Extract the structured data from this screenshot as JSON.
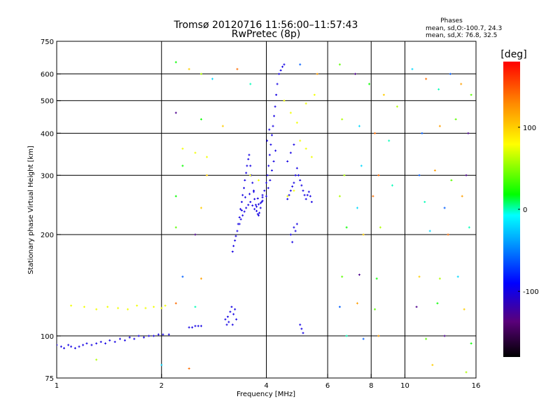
{
  "colors": {
    "background": "#ffffff",
    "axes": "#000000",
    "o_mode_points": "#1f1fff",
    "colorbar_stops": [
      "#000000",
      "#5a007a",
      "#0000ff",
      "#00aaff",
      "#00ffff",
      "#00ff00",
      "#ffff00",
      "#ff8800",
      "#ff0000"
    ]
  },
  "chart_data": {
    "type": "scatter",
    "title": "Tromsø 20120716 11:56:00–11:57:43",
    "subtitle": "RwPretec (8p)",
    "xlabel": "Frequency [MHz]",
    "ylabel": "Stationary phase Virtual Height [km]",
    "x_scale": "log",
    "y_scale": "log",
    "xlim": [
      1,
      16
    ],
    "ylim": [
      75,
      750
    ],
    "x_ticks": [
      1,
      2,
      4,
      6,
      8,
      10,
      16
    ],
    "y_ticks": [
      75,
      100,
      200,
      300,
      400,
      500,
      600,
      750
    ],
    "x_gridlines": [
      2,
      4,
      6,
      8,
      10
    ],
    "y_gridlines": [
      100,
      200,
      300,
      400,
      500,
      600
    ],
    "grid": true,
    "legend": {
      "title": "Phases",
      "lines": [
        "mean, sd,O:-100.7, 24.3",
        "mean, sd,X:  76.8, 32.5"
      ],
      "placement": "top-right"
    },
    "colorbar": {
      "label": "[deg]",
      "range": [
        -180,
        180
      ],
      "tick_labels": [
        "100",
        "0",
        "-100"
      ],
      "tick_values": [
        100,
        0,
        -100
      ],
      "placement": "right"
    },
    "traces": [
      {
        "mode": "O",
        "phase": -100,
        "points": [
          [
            1.0,
            94
          ],
          [
            1.03,
            93
          ],
          [
            1.05,
            92
          ],
          [
            1.08,
            94
          ],
          [
            1.1,
            93
          ],
          [
            1.13,
            92
          ],
          [
            1.16,
            93
          ],
          [
            1.19,
            94
          ],
          [
            1.22,
            95
          ],
          [
            1.26,
            94
          ],
          [
            1.3,
            95
          ],
          [
            1.34,
            96
          ],
          [
            1.38,
            95
          ],
          [
            1.42,
            97
          ],
          [
            1.47,
            96
          ],
          [
            1.52,
            98
          ],
          [
            1.57,
            97
          ],
          [
            1.62,
            99
          ],
          [
            1.67,
            98
          ],
          [
            1.72,
            100
          ],
          [
            1.78,
            99
          ],
          [
            1.84,
            100
          ],
          [
            1.9,
            100
          ],
          [
            1.96,
            101
          ],
          [
            2.02,
            101
          ],
          [
            2.1,
            101
          ],
          [
            2.4,
            106
          ],
          [
            2.45,
            106
          ],
          [
            2.5,
            107
          ],
          [
            2.55,
            107
          ],
          [
            2.6,
            107
          ],
          [
            3.05,
            112
          ],
          [
            3.08,
            108
          ],
          [
            3.1,
            114
          ],
          [
            3.12,
            110
          ],
          [
            3.15,
            118
          ],
          [
            3.18,
            122
          ],
          [
            3.2,
            108
          ],
          [
            3.22,
            116
          ],
          [
            3.25,
            120
          ],
          [
            3.28,
            112
          ],
          [
            3.2,
            178
          ],
          [
            3.22,
            185
          ],
          [
            3.25,
            192
          ],
          [
            3.27,
            198
          ],
          [
            3.3,
            205
          ],
          [
            3.32,
            215
          ],
          [
            3.35,
            225
          ],
          [
            3.37,
            238
          ],
          [
            3.4,
            250
          ],
          [
            3.42,
            262
          ],
          [
            3.45,
            275
          ],
          [
            3.47,
            290
          ],
          [
            3.5,
            305
          ],
          [
            3.52,
            320
          ],
          [
            3.55,
            335
          ],
          [
            3.57,
            345
          ],
          [
            3.6,
            320
          ],
          [
            3.62,
            300
          ],
          [
            3.65,
            285
          ],
          [
            3.68,
            270
          ],
          [
            3.7,
            255
          ],
          [
            3.73,
            245
          ],
          [
            3.75,
            235
          ],
          [
            3.78,
            230
          ],
          [
            3.8,
            228
          ],
          [
            3.82,
            232
          ],
          [
            3.85,
            240
          ],
          [
            3.88,
            250
          ],
          [
            3.9,
            258
          ],
          [
            3.35,
            215
          ],
          [
            3.38,
            222
          ],
          [
            3.42,
            228
          ],
          [
            3.46,
            234
          ],
          [
            3.5,
            240
          ],
          [
            3.55,
            245
          ],
          [
            3.6,
            250
          ],
          [
            3.65,
            244
          ],
          [
            3.7,
            238
          ],
          [
            3.75,
            242
          ],
          [
            3.8,
            246
          ],
          [
            3.85,
            248
          ],
          [
            3.9,
            252
          ],
          [
            3.4,
            236
          ],
          [
            3.48,
            258
          ],
          [
            3.58,
            264
          ],
          [
            3.68,
            268
          ],
          [
            3.78,
            256
          ],
          [
            3.9,
            262
          ],
          [
            3.95,
            270
          ],
          [
            4.0,
            285
          ],
          [
            4.03,
            300
          ],
          [
            4.06,
            320
          ],
          [
            4.09,
            345
          ],
          [
            4.12,
            370
          ],
          [
            4.15,
            395
          ],
          [
            4.18,
            420
          ],
          [
            4.21,
            450
          ],
          [
            4.24,
            480
          ],
          [
            4.27,
            520
          ],
          [
            4.3,
            560
          ],
          [
            4.35,
            600
          ],
          [
            4.4,
            615
          ],
          [
            4.45,
            630
          ],
          [
            4.5,
            640
          ],
          [
            4.0,
            260
          ],
          [
            4.05,
            275
          ],
          [
            4.1,
            290
          ],
          [
            4.15,
            310
          ],
          [
            4.2,
            330
          ],
          [
            4.25,
            355
          ],
          [
            4.02,
            380
          ],
          [
            4.08,
            410
          ],
          [
            4.6,
            255
          ],
          [
            4.65,
            262
          ],
          [
            4.7,
            270
          ],
          [
            4.75,
            278
          ],
          [
            4.8,
            285
          ],
          [
            4.85,
            300
          ],
          [
            4.9,
            315
          ],
          [
            4.95,
            300
          ],
          [
            5.0,
            290
          ],
          [
            5.05,
            280
          ],
          [
            5.1,
            270
          ],
          [
            5.15,
            262
          ],
          [
            5.2,
            255
          ],
          [
            5.25,
            262
          ],
          [
            5.3,
            268
          ],
          [
            5.35,
            260
          ],
          [
            5.4,
            250
          ],
          [
            4.7,
            200
          ],
          [
            4.75,
            190
          ],
          [
            4.8,
            210
          ],
          [
            4.85,
            205
          ],
          [
            4.9,
            215
          ],
          [
            4.6,
            330
          ],
          [
            4.7,
            350
          ],
          [
            4.8,
            370
          ],
          [
            5.0,
            108
          ],
          [
            5.05,
            105
          ],
          [
            5.1,
            102
          ]
        ]
      },
      {
        "mode": "X",
        "phase": 76,
        "points": [
          [
            1.1,
            123
          ],
          [
            1.2,
            122
          ],
          [
            1.3,
            120
          ],
          [
            1.4,
            122
          ],
          [
            1.5,
            121
          ],
          [
            1.6,
            120
          ],
          [
            1.7,
            123
          ],
          [
            1.8,
            121
          ],
          [
            1.9,
            122
          ],
          [
            2.0,
            121
          ],
          [
            2.05,
            123
          ],
          [
            2.3,
            360
          ],
          [
            2.5,
            350
          ],
          [
            2.7,
            340
          ],
          [
            3.6,
            300
          ],
          [
            3.8,
            290
          ],
          [
            4.6,
            260
          ],
          [
            4.8,
            270
          ],
          [
            5.0,
            380
          ],
          [
            5.2,
            360
          ],
          [
            5.4,
            340
          ],
          [
            4.5,
            500
          ],
          [
            4.7,
            460
          ],
          [
            4.9,
            430
          ],
          [
            5.5,
            520
          ],
          [
            5.2,
            490
          ]
        ]
      },
      {
        "mode": "scattered",
        "phase": 20,
        "points": [
          [
            2.2,
            650
          ],
          [
            2.4,
            620
          ],
          [
            2.6,
            600
          ],
          [
            2.8,
            580
          ],
          [
            3.3,
            620
          ],
          [
            3.6,
            560
          ],
          [
            5.0,
            640
          ],
          [
            5.6,
            600
          ],
          [
            6.5,
            640
          ],
          [
            7.2,
            600
          ],
          [
            7.9,
            560
          ],
          [
            8.7,
            520
          ],
          [
            9.5,
            480
          ],
          [
            10.5,
            620
          ],
          [
            11.5,
            580
          ],
          [
            12.5,
            540
          ],
          [
            13.5,
            600
          ],
          [
            14.5,
            560
          ],
          [
            15.5,
            520
          ],
          [
            2.2,
            460
          ],
          [
            2.6,
            440
          ],
          [
            3.0,
            420
          ],
          [
            6.6,
            440
          ],
          [
            7.4,
            420
          ],
          [
            8.2,
            400
          ],
          [
            9.0,
            380
          ],
          [
            11.2,
            400
          ],
          [
            12.6,
            420
          ],
          [
            14.0,
            440
          ],
          [
            15.2,
            400
          ],
          [
            2.3,
            320
          ],
          [
            2.7,
            300
          ],
          [
            6.7,
            300
          ],
          [
            7.5,
            320
          ],
          [
            8.4,
            300
          ],
          [
            9.2,
            280
          ],
          [
            11.0,
            300
          ],
          [
            12.2,
            310
          ],
          [
            13.6,
            290
          ],
          [
            15.0,
            300
          ],
          [
            2.2,
            260
          ],
          [
            2.6,
            240
          ],
          [
            6.5,
            260
          ],
          [
            7.3,
            240
          ],
          [
            8.1,
            260
          ],
          [
            11.4,
            250
          ],
          [
            13.0,
            240
          ],
          [
            14.6,
            260
          ],
          [
            2.2,
            210
          ],
          [
            2.5,
            200
          ],
          [
            6.8,
            210
          ],
          [
            7.6,
            200
          ],
          [
            8.5,
            210
          ],
          [
            11.8,
            205
          ],
          [
            13.3,
            200
          ],
          [
            15.3,
            210
          ],
          [
            2.3,
            150
          ],
          [
            2.6,
            148
          ],
          [
            6.6,
            150
          ],
          [
            7.4,
            152
          ],
          [
            8.3,
            148
          ],
          [
            11.0,
            150
          ],
          [
            12.6,
            148
          ],
          [
            14.2,
            150
          ],
          [
            2.2,
            125
          ],
          [
            2.5,
            122
          ],
          [
            6.5,
            122
          ],
          [
            7.3,
            125
          ],
          [
            8.2,
            120
          ],
          [
            10.8,
            122
          ],
          [
            12.4,
            125
          ],
          [
            14.8,
            120
          ],
          [
            1.3,
            85
          ],
          [
            2.0,
            82
          ],
          [
            2.4,
            80
          ],
          [
            6.8,
            100
          ],
          [
            7.6,
            98
          ],
          [
            8.4,
            100
          ],
          [
            11.5,
            98
          ],
          [
            13.0,
            100
          ],
          [
            15.5,
            95
          ],
          [
            12.0,
            82
          ],
          [
            15.0,
            78
          ]
        ]
      }
    ]
  }
}
